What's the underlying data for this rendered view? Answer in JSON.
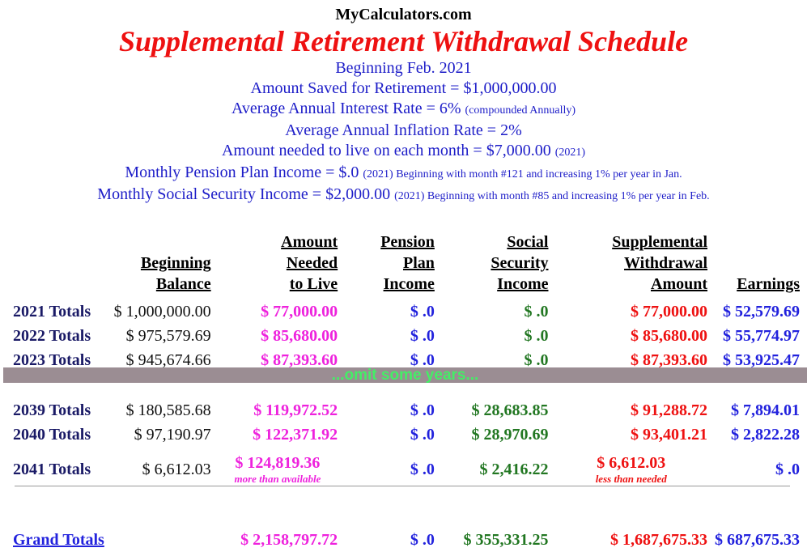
{
  "site": "MyCalculators.com",
  "title": "Supplemental Retirement Withdrawal Schedule",
  "info": {
    "beginning": "Beginning Feb. 2021",
    "amount_saved": "Amount Saved for Retirement = $1,000,000.00",
    "interest": "Average Annual Interest Rate = 6%",
    "interest_note": "(compounded Annually)",
    "inflation": "Average Annual Inflation Rate = 2%",
    "needed": "Amount needed to live on each month = $7,000.00",
    "needed_note": "(2021)",
    "pension": "Monthly Pension Plan Income = $.0",
    "pension_note": "(2021) Beginning with month #121 and increasing 1% per year in Jan.",
    "ss": "Monthly Social Security Income = $2,000.00",
    "ss_note": "(2021) Beginning with month #85 and increasing 1% per year in Feb."
  },
  "columns": {
    "balance_1": "Beginning",
    "balance_2": "Balance",
    "need_1": "Amount",
    "need_2": "Needed",
    "need_3": "to Live",
    "pension_1": "Pension",
    "pension_2": "Plan",
    "pension_3": "Income",
    "ss_1": "Social",
    "ss_2": "Security",
    "ss_3": "Income",
    "sw_1": "Supplemental",
    "sw_2": "Withdrawal",
    "sw_3": "Amount",
    "earnings": "Earnings"
  },
  "rows_top": [
    {
      "label": "2021 Totals",
      "balance": "$ 1,000,000.00",
      "need": "$ 77,000.00",
      "pension": "$ .0",
      "ss": "$ .0",
      "sw": "$ 77,000.00",
      "earnings": "$ 52,579.69"
    },
    {
      "label": "2022 Totals",
      "balance": "$ 975,579.69",
      "need": "$ 85,680.00",
      "pension": "$ .0",
      "ss": "$ .0",
      "sw": "$ 85,680.00",
      "earnings": "$ 55,774.97"
    },
    {
      "label": "2023 Totals",
      "balance": "$ 945,674.66",
      "need": "$ 87,393.60",
      "pension": "$ .0",
      "ss": "$ .0",
      "sw": "$ 87,393.60",
      "earnings": "$ 53,925.47"
    }
  ],
  "omit_text": "...omit some years...",
  "rows_bottom": [
    {
      "label": "2039 Totals",
      "balance": "$ 180,585.68",
      "need": "$ 119,972.52",
      "pension": "$ .0",
      "ss": "$ 28,683.85",
      "sw": "$ 91,288.72",
      "earnings": "$ 7,894.01"
    },
    {
      "label": "2040 Totals",
      "balance": "$ 97,190.97",
      "need": "$ 122,371.92",
      "pension": "$ .0",
      "ss": "$ 28,970.69",
      "sw": "$ 93,401.21",
      "earnings": "$ 2,822.28"
    },
    {
      "label": "2041 Totals",
      "balance": "$ 6,612.03",
      "need": "$ 124,819.36",
      "need_note": "more than available",
      "pension": "$ .0",
      "ss": "$ 2,416.22",
      "sw": "$ 6,612.03",
      "sw_note": "less than needed",
      "earnings": "$ .0"
    }
  ],
  "grand": {
    "label": "Grand Totals",
    "need": "$ 2,158,797.72",
    "pension": "$ .0",
    "ss": "$ 355,331.25",
    "sw": "$ 1,687,675.33",
    "earnings": "$ 687,675.33"
  }
}
